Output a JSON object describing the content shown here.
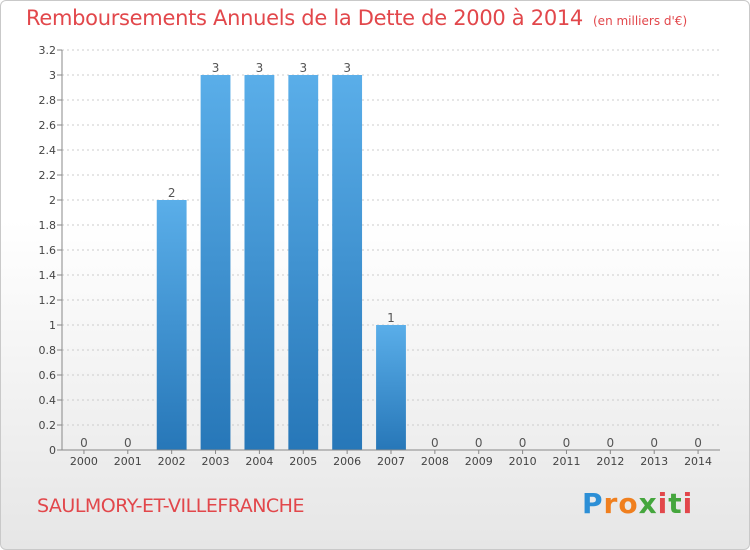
{
  "header": {
    "title": "Remboursements Annuels de la Dette de 2000 à 2014",
    "unit": "(en milliers d'€)"
  },
  "footer": {
    "commune": "SAULMORY-ET-VILLEFRANCHE",
    "logo": "Proxiti"
  },
  "colors": {
    "bar_top": "#5aaee9",
    "bar_bottom": "#2777b8",
    "title": "#e2474b",
    "axis": "#888888",
    "grid": "#cccccc"
  },
  "chart_data": {
    "type": "bar",
    "title": "Remboursements Annuels de la Dette de 2000 à 2014",
    "subtitle": "(en milliers d'€)",
    "xlabel": "",
    "ylabel": "",
    "categories": [
      "2000",
      "2001",
      "2002",
      "2003",
      "2004",
      "2005",
      "2006",
      "2007",
      "2008",
      "2009",
      "2010",
      "2011",
      "2012",
      "2013",
      "2014"
    ],
    "values": [
      0,
      0,
      2,
      3,
      3,
      3,
      3,
      1,
      0,
      0,
      0,
      0,
      0,
      0,
      0
    ],
    "data_labels": [
      "0",
      "0",
      "2",
      "3",
      "3",
      "3",
      "3",
      "1",
      "0",
      "0",
      "0",
      "0",
      "0",
      "0",
      "0"
    ],
    "ylim": [
      0,
      3.2
    ],
    "y_ticks": [
      {
        "v": 0,
        "label": "0"
      },
      {
        "v": 0.2,
        "label": "0.2"
      },
      {
        "v": 0.4,
        "label": "0.4"
      },
      {
        "v": 0.6,
        "label": "0.6"
      },
      {
        "v": 0.8,
        "label": "0.8"
      },
      {
        "v": 1,
        "label": "1"
      },
      {
        "v": 1.2,
        "label": "1.2"
      },
      {
        "v": 1.4,
        "label": "1.4"
      },
      {
        "v": 1.6,
        "label": "1.6"
      },
      {
        "v": 1.8,
        "label": "1.8"
      },
      {
        "v": 2,
        "label": "2"
      },
      {
        "v": 2.2,
        "label": "2.2"
      },
      {
        "v": 2.4,
        "label": "2.4"
      },
      {
        "v": 2.6,
        "label": "2.6"
      },
      {
        "v": 2.8,
        "label": "2.8"
      },
      {
        "v": 3,
        "label": "3"
      },
      {
        "v": 3.2,
        "label": "3.2"
      }
    ],
    "grid": true,
    "legend": "none"
  }
}
